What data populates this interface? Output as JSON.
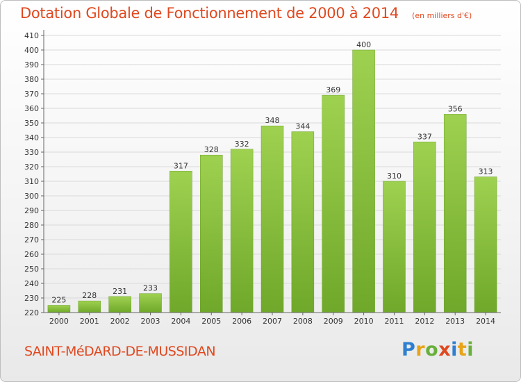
{
  "header": {
    "title": "Dotation Globale de Fonctionnement de 2000 à 2014",
    "unit": "(en milliers d'€)"
  },
  "footer": {
    "commune": "SAINT-MéDARD-DE-MUSSIDAN"
  },
  "logo": {
    "text": "Proxiti",
    "letters": [
      {
        "char": "P",
        "color": "#2e7fd0"
      },
      {
        "char": "r",
        "color": "#e8a416"
      },
      {
        "char": "o",
        "color": "#69b03b"
      },
      {
        "char": "x",
        "color": "#e0481f"
      },
      {
        "char": "i",
        "color": "#2e7fd0"
      },
      {
        "char": "t",
        "color": "#e8a416"
      },
      {
        "char": "i",
        "color": "#69b03b"
      }
    ]
  },
  "chart_data": {
    "type": "bar",
    "title": "Dotation Globale de Fonctionnement de 2000 à 2014",
    "subtitle": "(en milliers d'€)",
    "categories": [
      "2000",
      "2001",
      "2002",
      "2003",
      "2004",
      "2005",
      "2006",
      "2007",
      "2008",
      "2009",
      "2010",
      "2011",
      "2012",
      "2013",
      "2014"
    ],
    "values": [
      225,
      228,
      231,
      233,
      317,
      328,
      332,
      348,
      344,
      369,
      400,
      310,
      337,
      356,
      313
    ],
    "ylim": [
      220,
      410
    ],
    "yticks": [
      220,
      230,
      240,
      250,
      260,
      270,
      280,
      290,
      300,
      310,
      320,
      330,
      340,
      350,
      360,
      370,
      380,
      390,
      400,
      410
    ],
    "grid": true,
    "data_labels": true,
    "bar_color": "#8cc63f",
    "xlabel": "",
    "ylabel": ""
  }
}
